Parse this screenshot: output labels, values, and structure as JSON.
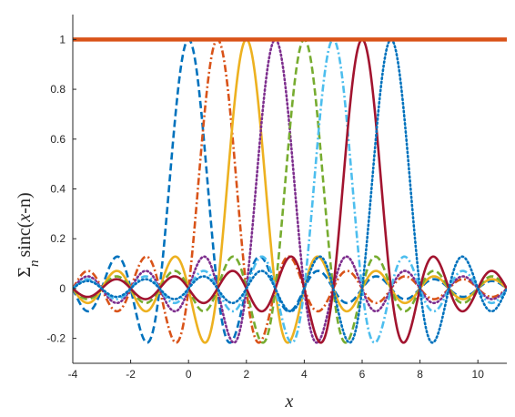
{
  "chart_data": {
    "type": "line",
    "title": "",
    "xlabel": "x",
    "ylabel": "Σ_n sinc(x-n)",
    "ylabel_parts": {
      "sum": "Σ",
      "sub": "n",
      "func": "sinc(",
      "var": "x",
      "rest": "-n)"
    },
    "xlim": [
      -4,
      11
    ],
    "ylim": [
      -0.3,
      1.1
    ],
    "xticks": [
      -4,
      -2,
      0,
      2,
      4,
      6,
      8,
      10
    ],
    "xtick_labels": [
      "-4",
      "-2",
      "0",
      "2",
      "4",
      "6",
      "8",
      "10"
    ],
    "yticks": [
      -0.2,
      0,
      0.2,
      0.4,
      0.6,
      0.8,
      1
    ],
    "ytick_labels": [
      "-0.2",
      "0",
      "0.2",
      "0.4",
      "0.6",
      "0.8",
      "1"
    ],
    "grid": false,
    "box": false,
    "series": [
      {
        "function": "sinc(x-0)",
        "shift": 0,
        "color": "#0072BD",
        "dash": "dashed"
      },
      {
        "function": "sinc(x-1)",
        "shift": 1,
        "color": "#D95319",
        "dash": "dashdot"
      },
      {
        "function": "sinc(x-2)",
        "shift": 2,
        "color": "#EDB120",
        "dash": "solid"
      },
      {
        "function": "sinc(x-3)",
        "shift": 3,
        "color": "#7E2F8E",
        "dash": "dotted"
      },
      {
        "function": "sinc(x-4)",
        "shift": 4,
        "color": "#77AC30",
        "dash": "dashed"
      },
      {
        "function": "sinc(x-5)",
        "shift": 5,
        "color": "#4DBEEE",
        "dash": "dashdot"
      },
      {
        "function": "sinc(x-6)",
        "shift": 6,
        "color": "#A2142F",
        "dash": "solid"
      },
      {
        "function": "sinc(x-7)",
        "shift": 7,
        "color": "#0072BD",
        "dash": "dotted"
      }
    ],
    "sum_line": {
      "function": "Σ_n sinc(x-n)",
      "value": 1,
      "color": "#D95319"
    }
  }
}
